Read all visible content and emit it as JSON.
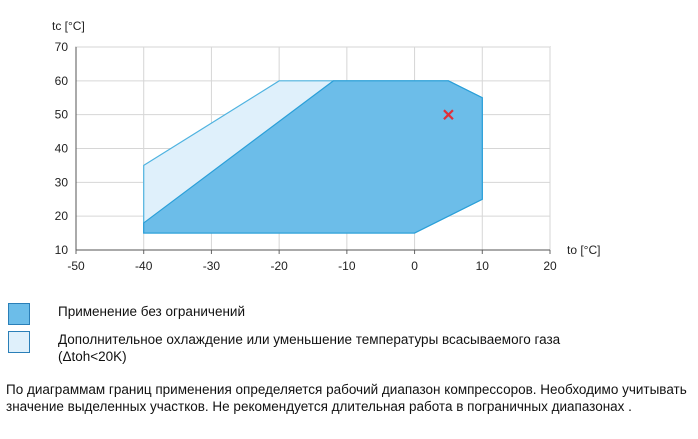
{
  "chart_data": {
    "type": "polygon",
    "y_label": "tc [°C]",
    "x_label": "to [°C]",
    "xlim": [
      -50,
      20
    ],
    "ylim": [
      10,
      70
    ],
    "xticks": [
      -50,
      -40,
      -30,
      -20,
      -10,
      0,
      10,
      20
    ],
    "yticks": [
      10,
      20,
      30,
      40,
      50,
      60,
      70
    ],
    "grid": true,
    "series": [
      {
        "name": "Применение без ограничений",
        "color": "#6cbde9",
        "stroke": "#2a9fd8",
        "x": [
          -40,
          -12,
          5,
          10,
          10,
          0,
          -40
        ],
        "values": [
          18,
          60,
          60,
          55,
          25,
          15,
          15
        ]
      },
      {
        "name": "Дополнительное охлаждение или уменьшение температуры всасываемого газа (Δtoh<20K)",
        "color": "#dff0fb",
        "stroke": "#4fb3e0",
        "x": [
          -40,
          -20,
          5,
          10,
          10,
          0,
          -40
        ],
        "values": [
          35,
          60,
          60,
          55,
          25,
          15,
          15
        ]
      }
    ],
    "markers": [
      {
        "x": 5,
        "y": 50,
        "color": "#e0303a"
      }
    ],
    "note": "По диаграммам границ применения определяется рабочий диапазон компрессоров. Необходимо учитывать значение выделенных участков. Не рекомендуется длительная работа в пограничных диапазонах ."
  }
}
